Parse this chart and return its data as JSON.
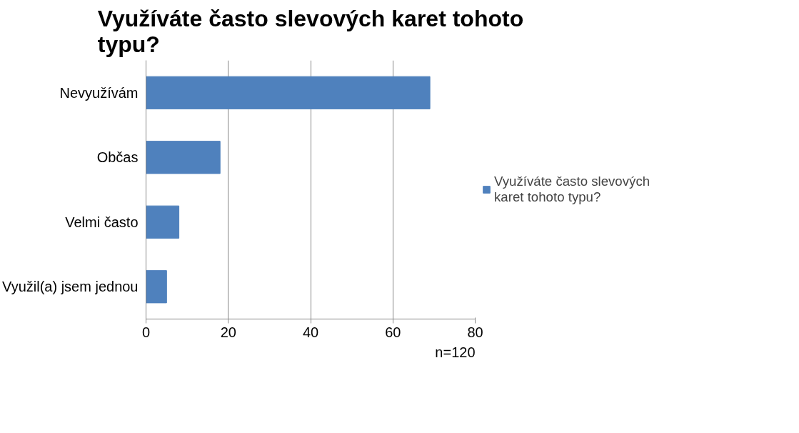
{
  "chart_data": {
    "type": "bar",
    "orientation": "horizontal",
    "title": "Využíváte často slevových karet tohoto typu?",
    "categories": [
      "Nevyužívám",
      "Občas",
      "Velmi často",
      "Využil(a) jsem jednou"
    ],
    "series": [
      {
        "name": "Využíváte často slevových karet tohoto typu?",
        "color": "#4f81bd",
        "values": [
          69,
          18,
          8,
          5
        ]
      }
    ],
    "xlim": [
      0,
      80
    ],
    "xticks": [
      0,
      20,
      40,
      60,
      80
    ],
    "grid": "x",
    "legend": "right",
    "annotations": [
      "n=120"
    ]
  }
}
